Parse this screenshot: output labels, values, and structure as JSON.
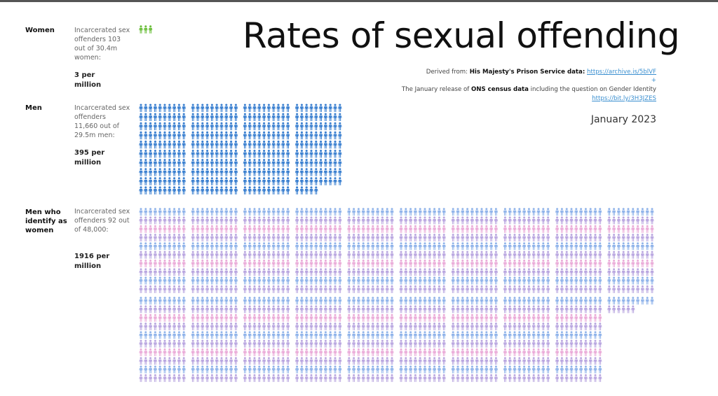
{
  "title": "Rates of sexual offending",
  "source": {
    "prefix": "Derived from: ",
    "source1_bold": "His Majesty's Prison Service data:",
    "source1_link": "https://archive.is/5blVF",
    "plus": "+",
    "source2_pre": "The January release of ",
    "source2_bold": "ONS census data",
    "source2_post": " including the question on Gender Identity",
    "source2_link": "https://bit.ly/3H3JZES"
  },
  "date": "January 2023",
  "groups": [
    {
      "label": "Women",
      "description": "Incarcerated sex offenders 103 out of 30.4m women:",
      "rate": "3 per million"
    },
    {
      "label": "Men",
      "description": "Incarcerated sex offenders 11,660 out of 29.5m men:",
      "rate": "395 per million"
    },
    {
      "label": "Men who identify as women",
      "description": "Incarcerated sex offenders 92 out of 48,000:",
      "rate": "1916 per million"
    }
  ],
  "chart_data": {
    "type": "pictogram",
    "categories": [
      "Women",
      "Men",
      "Men who identify as women"
    ],
    "values": [
      3,
      395,
      1916
    ],
    "colors": {
      "Women": "#6cbf3c",
      "Men": "#3b80d0",
      "Men who identify as women": [
        "#8fb3ea",
        "#b9a6e0",
        "#eaaad8"
      ]
    }
  }
}
